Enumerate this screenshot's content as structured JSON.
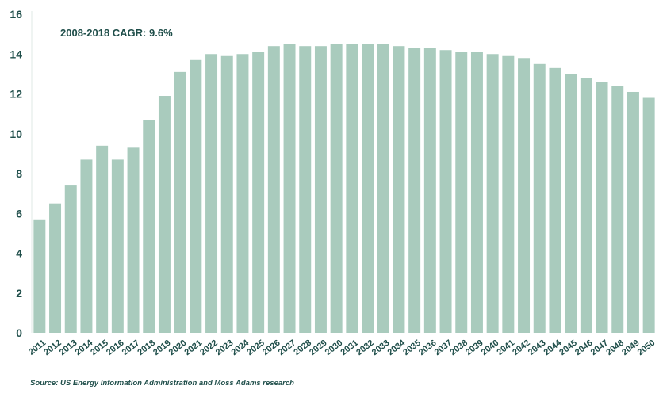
{
  "chart_data": {
    "type": "bar",
    "categories": [
      "2011",
      "2012",
      "2013",
      "2014",
      "2015",
      "2016",
      "2017",
      "2018",
      "2019",
      "2020",
      "2021",
      "2022",
      "2023",
      "2024",
      "2025",
      "2026",
      "2027",
      "2028",
      "2029",
      "2030",
      "2031",
      "2032",
      "2033",
      "2034",
      "2035",
      "2036",
      "2037",
      "2038",
      "2039",
      "2040",
      "2041",
      "2042",
      "2043",
      "2044",
      "2045",
      "2046",
      "2047",
      "2048",
      "2049",
      "2050"
    ],
    "values": [
      5.7,
      6.5,
      7.4,
      8.7,
      9.4,
      8.7,
      9.3,
      10.7,
      11.9,
      13.1,
      13.7,
      14.0,
      13.9,
      14.0,
      14.1,
      14.4,
      14.5,
      14.4,
      14.4,
      14.5,
      14.5,
      14.5,
      14.5,
      14.4,
      14.3,
      14.3,
      14.2,
      14.1,
      14.1,
      14.0,
      13.9,
      13.8,
      13.5,
      13.3,
      13.0,
      12.8,
      12.6,
      12.4,
      12.1,
      11.8
    ],
    "yticks": [
      0,
      2,
      4,
      6,
      8,
      10,
      12,
      14,
      16
    ],
    "ylim": [
      0,
      16
    ],
    "grid": false,
    "bar_color": "#a9cbbd",
    "text_color": "#1f4e4a",
    "annotation": "2008-2018 CAGR: 9.6%",
    "source": "Source: US Energy Information Administration and Moss Adams research"
  }
}
